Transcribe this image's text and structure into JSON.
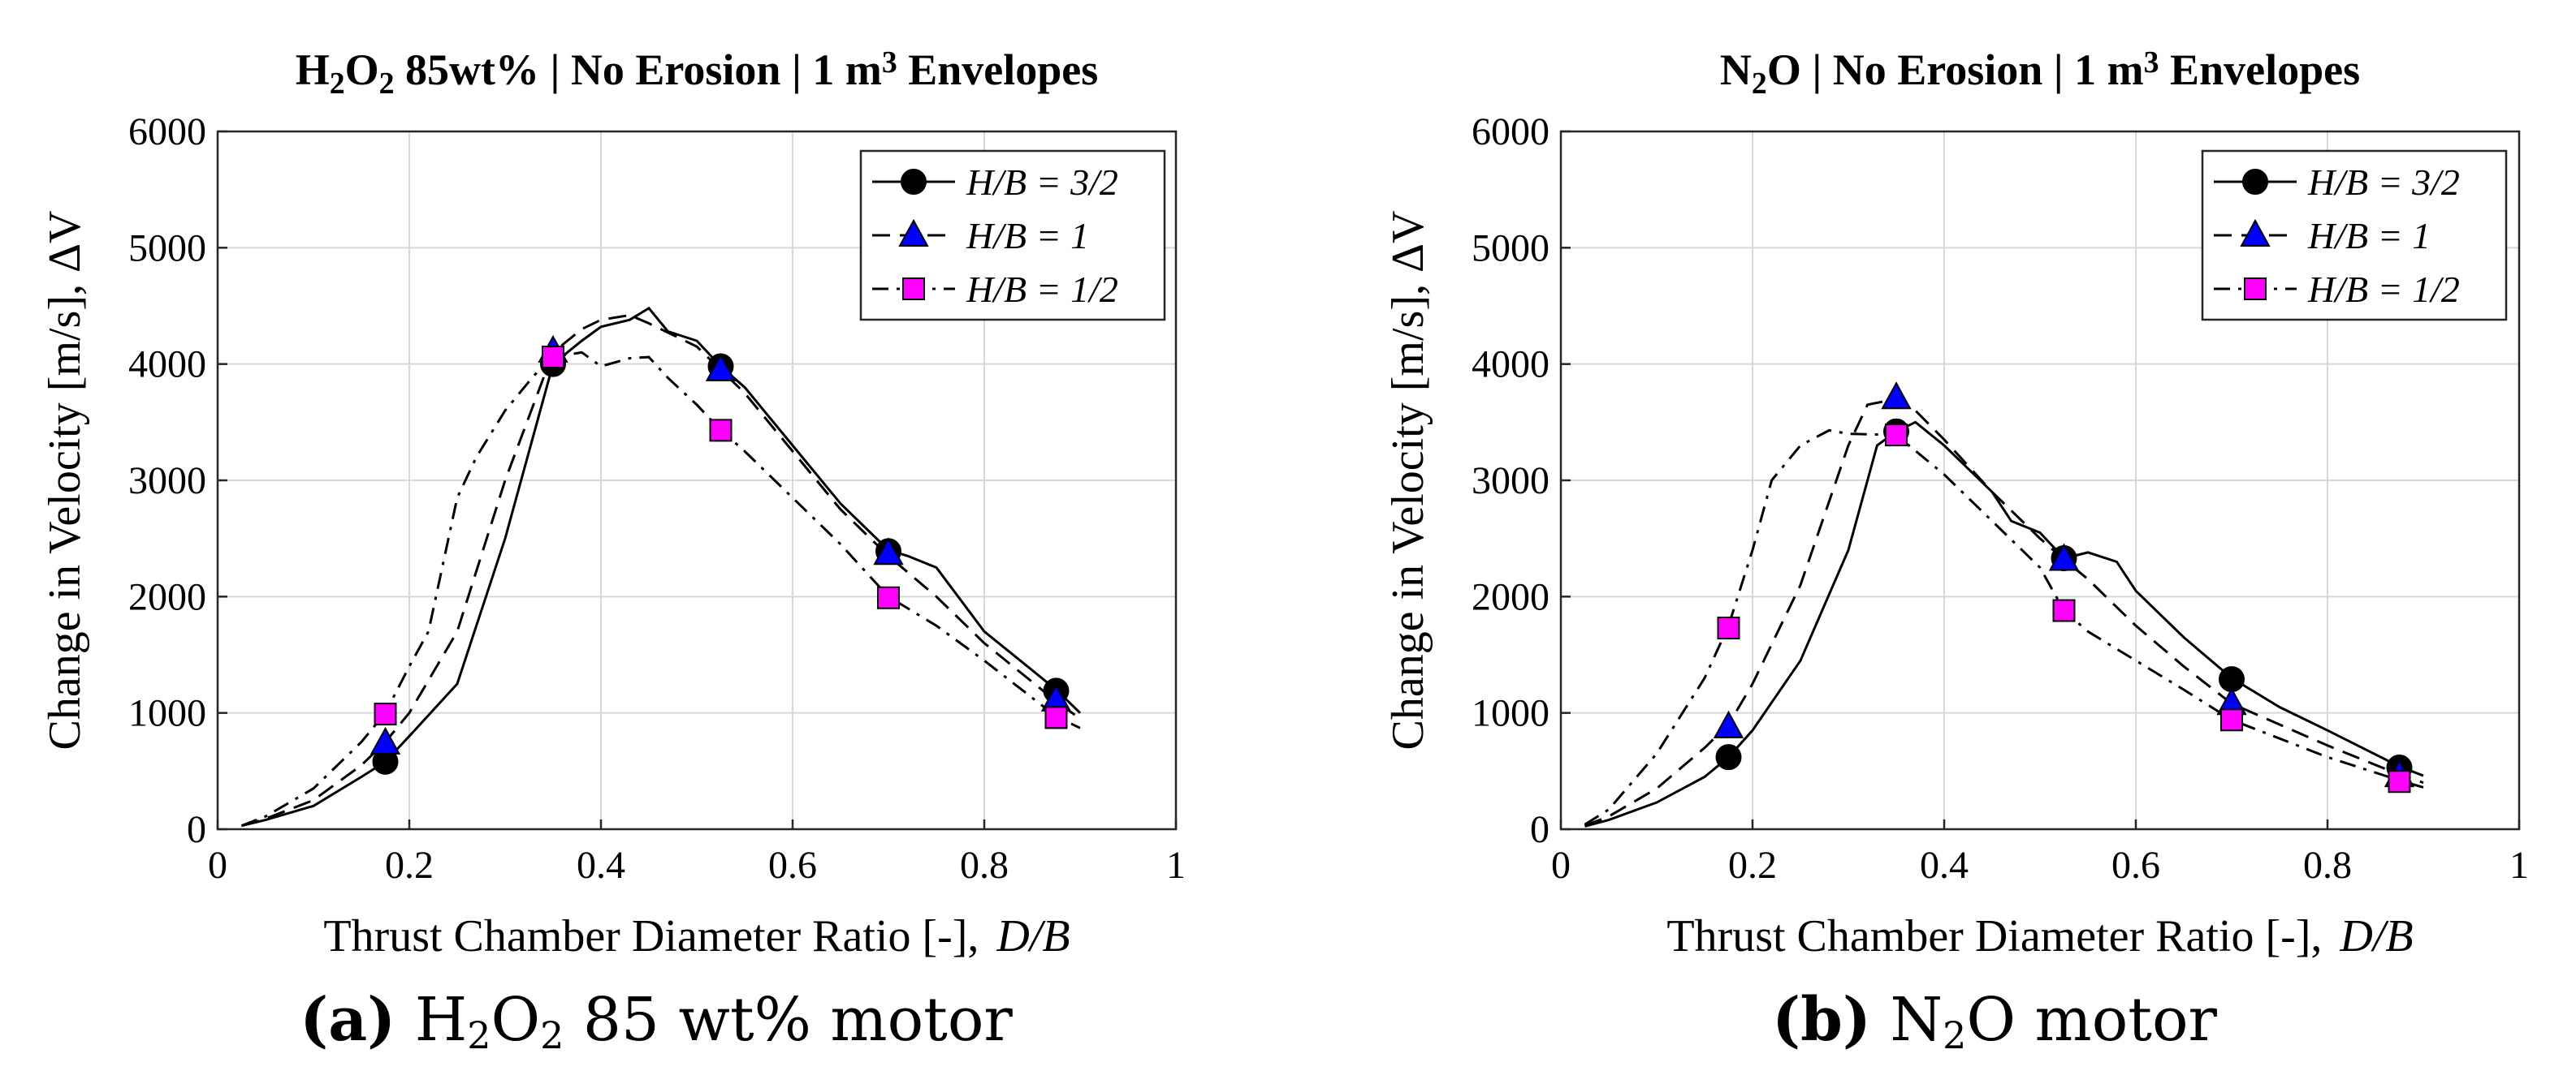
{
  "chart_data": [
    {
      "type": "line",
      "title_parts": [
        {
          "t": "H",
          "sub": false
        },
        {
          "t": "2",
          "sub": true
        },
        {
          "t": "O",
          "sub": false
        },
        {
          "t": "2",
          "sub": true
        },
        {
          "t": " 85wt% | No Erosion | 1 m",
          "sub": false
        },
        {
          "t": "3",
          "sup": true
        },
        {
          "t": " Envelopes",
          "sub": false
        }
      ],
      "xlabel": "Thrust Chamber Diameter Ratio [-],",
      "xlabel_var": "D/B",
      "ylabel": "Change in Velocity [m/s], ΔV",
      "xlim": [
        0,
        1
      ],
      "ylim": [
        0,
        6000
      ],
      "xticks": [
        0,
        0.2,
        0.4,
        0.6,
        0.8,
        1
      ],
      "xtick_labels": [
        "0",
        "0.2",
        "0.4",
        "0.6",
        "0.8",
        "1"
      ],
      "yticks": [
        0,
        1000,
        2000,
        3000,
        4000,
        5000,
        6000
      ],
      "ytick_labels": [
        "0",
        "1000",
        "2000",
        "3000",
        "4000",
        "5000",
        "6000"
      ],
      "grid": true,
      "legend_position": "top-right",
      "caption_prefix": "(a)",
      "caption_parts": [
        {
          "t": "H",
          "sub": false
        },
        {
          "t": "2",
          "sub": true
        },
        {
          "t": "O",
          "sub": false
        },
        {
          "t": "2",
          "sub": true
        },
        {
          "t": " 85 wt% motor",
          "sub": false
        }
      ],
      "series": [
        {
          "name": "H/B = 3/2",
          "line_style": "solid",
          "marker": "circle",
          "marker_color": "#000000",
          "x": [
            0.025,
            0.05,
            0.1,
            0.15,
            0.175,
            0.2,
            0.25,
            0.3,
            0.33,
            0.35,
            0.38,
            0.4,
            0.43,
            0.45,
            0.47,
            0.5,
            0.525,
            0.55,
            0.6,
            0.65,
            0.7,
            0.72,
            0.75,
            0.8,
            0.875,
            0.9
          ],
          "y": [
            30,
            80,
            200,
            450,
            580,
            800,
            1250,
            2500,
            3400,
            4000,
            4200,
            4320,
            4380,
            4480,
            4280,
            4200,
            3980,
            3800,
            3300,
            2800,
            2400,
            2350,
            2250,
            1700,
            1200,
            1000
          ],
          "markers_x": [
            0.175,
            0.35,
            0.525,
            0.7,
            0.875
          ],
          "markers_y": [
            580,
            4000,
            3980,
            2390,
            1190
          ]
        },
        {
          "name": "H/B = 1",
          "line_style": "dashed",
          "marker": "triangle",
          "marker_color": "#0000ff",
          "x": [
            0.025,
            0.05,
            0.1,
            0.15,
            0.175,
            0.2,
            0.25,
            0.3,
            0.35,
            0.38,
            0.4,
            0.43,
            0.45,
            0.5,
            0.525,
            0.55,
            0.6,
            0.65,
            0.7,
            0.75,
            0.8,
            0.875,
            0.9
          ],
          "y": [
            30,
            90,
            250,
            550,
            750,
            1000,
            1700,
            3000,
            4100,
            4300,
            4380,
            4420,
            4350,
            4150,
            3950,
            3750,
            3250,
            2750,
            2350,
            2000,
            1600,
            1100,
            950
          ],
          "markers_x": [
            0.175,
            0.35,
            0.525,
            0.7,
            0.875
          ],
          "markers_y": [
            740,
            4110,
            3950,
            2370,
            1110
          ]
        },
        {
          "name": "H/B = 1/2",
          "line_style": "dashdot",
          "marker": "square",
          "marker_color": "#ff00ff",
          "x": [
            0.025,
            0.05,
            0.1,
            0.15,
            0.175,
            0.2,
            0.22,
            0.25,
            0.27,
            0.3,
            0.33,
            0.35,
            0.38,
            0.4,
            0.43,
            0.45,
            0.47,
            0.5,
            0.525,
            0.55,
            0.6,
            0.65,
            0.7,
            0.75,
            0.8,
            0.875,
            0.9
          ],
          "y": [
            30,
            110,
            350,
            750,
            1000,
            1400,
            1700,
            2850,
            3200,
            3600,
            3900,
            4060,
            4100,
            3980,
            4050,
            4060,
            3880,
            3650,
            3430,
            3250,
            2850,
            2450,
            2000,
            1750,
            1450,
            970,
            870
          ],
          "markers_x": [
            0.175,
            0.35,
            0.525,
            0.7,
            0.875
          ],
          "markers_y": [
            990,
            4060,
            3430,
            1990,
            960
          ]
        }
      ]
    },
    {
      "type": "line",
      "title_parts": [
        {
          "t": "N",
          "sub": false
        },
        {
          "t": "2",
          "sub": true
        },
        {
          "t": "O | No Erosion | 1 m",
          "sub": false
        },
        {
          "t": "3",
          "sup": true
        },
        {
          "t": " Envelopes",
          "sub": false
        }
      ],
      "xlabel": "Thrust Chamber Diameter Ratio [-],",
      "xlabel_var": "D/B",
      "ylabel": "Change in Velocity [m/s], ΔV",
      "xlim": [
        0,
        1
      ],
      "ylim": [
        0,
        6000
      ],
      "xticks": [
        0,
        0.2,
        0.4,
        0.6,
        0.8,
        1
      ],
      "xtick_labels": [
        "0",
        "0.2",
        "0.4",
        "0.6",
        "0.8",
        "1"
      ],
      "yticks": [
        0,
        1000,
        2000,
        3000,
        4000,
        5000,
        6000
      ],
      "ytick_labels": [
        "0",
        "1000",
        "2000",
        "3000",
        "4000",
        "5000",
        "6000"
      ],
      "grid": true,
      "legend_position": "top-right",
      "caption_prefix": "(b)",
      "caption_parts": [
        {
          "t": "N",
          "sub": false
        },
        {
          "t": "2",
          "sub": true
        },
        {
          "t": "O motor",
          "sub": false
        }
      ],
      "series": [
        {
          "name": "H/B = 3/2",
          "line_style": "solid",
          "marker": "circle",
          "marker_color": "#000000",
          "x": [
            0.025,
            0.05,
            0.1,
            0.15,
            0.175,
            0.2,
            0.25,
            0.3,
            0.33,
            0.35,
            0.37,
            0.4,
            0.45,
            0.47,
            0.5,
            0.525,
            0.55,
            0.58,
            0.6,
            0.65,
            0.7,
            0.75,
            0.8,
            0.875,
            0.9
          ],
          "y": [
            25,
            80,
            230,
            450,
            620,
            850,
            1450,
            2400,
            3300,
            3420,
            3500,
            3300,
            2900,
            2650,
            2550,
            2330,
            2380,
            2300,
            2050,
            1650,
            1300,
            1050,
            850,
            540,
            460
          ],
          "markers_x": [
            0.175,
            0.35,
            0.525,
            0.7,
            0.875
          ],
          "markers_y": [
            620,
            3420,
            2330,
            1290,
            530
          ]
        },
        {
          "name": "H/B = 1",
          "line_style": "dashed",
          "marker": "triangle",
          "marker_color": "#0000ff",
          "x": [
            0.025,
            0.05,
            0.1,
            0.15,
            0.175,
            0.2,
            0.25,
            0.3,
            0.32,
            0.35,
            0.37,
            0.4,
            0.45,
            0.5,
            0.525,
            0.55,
            0.6,
            0.65,
            0.7,
            0.75,
            0.8,
            0.875,
            0.9
          ],
          "y": [
            30,
            110,
            350,
            700,
            900,
            1250,
            2100,
            3300,
            3650,
            3700,
            3600,
            3350,
            2900,
            2500,
            2320,
            2150,
            1750,
            1400,
            1080,
            900,
            720,
            470,
            400
          ],
          "markers_x": [
            0.175,
            0.35,
            0.525,
            0.7,
            0.875
          ],
          "markers_y": [
            880,
            3710,
            2320,
            1080,
            460
          ]
        },
        {
          "name": "H/B = 1/2",
          "line_style": "dashdot",
          "marker": "square",
          "marker_color": "#ff00ff",
          "x": [
            0.025,
            0.05,
            0.1,
            0.15,
            0.175,
            0.2,
            0.22,
            0.25,
            0.28,
            0.3,
            0.35,
            0.4,
            0.45,
            0.5,
            0.525,
            0.55,
            0.6,
            0.65,
            0.7,
            0.75,
            0.8,
            0.875,
            0.9
          ],
          "y": [
            40,
            170,
            650,
            1300,
            1750,
            2400,
            3000,
            3300,
            3430,
            3400,
            3390,
            3050,
            2650,
            2250,
            1880,
            1700,
            1450,
            1200,
            940,
            780,
            620,
            420,
            360
          ],
          "markers_x": [
            0.175,
            0.35,
            0.525,
            0.7,
            0.875
          ],
          "markers_y": [
            1730,
            3390,
            1880,
            940,
            410
          ]
        }
      ]
    }
  ]
}
